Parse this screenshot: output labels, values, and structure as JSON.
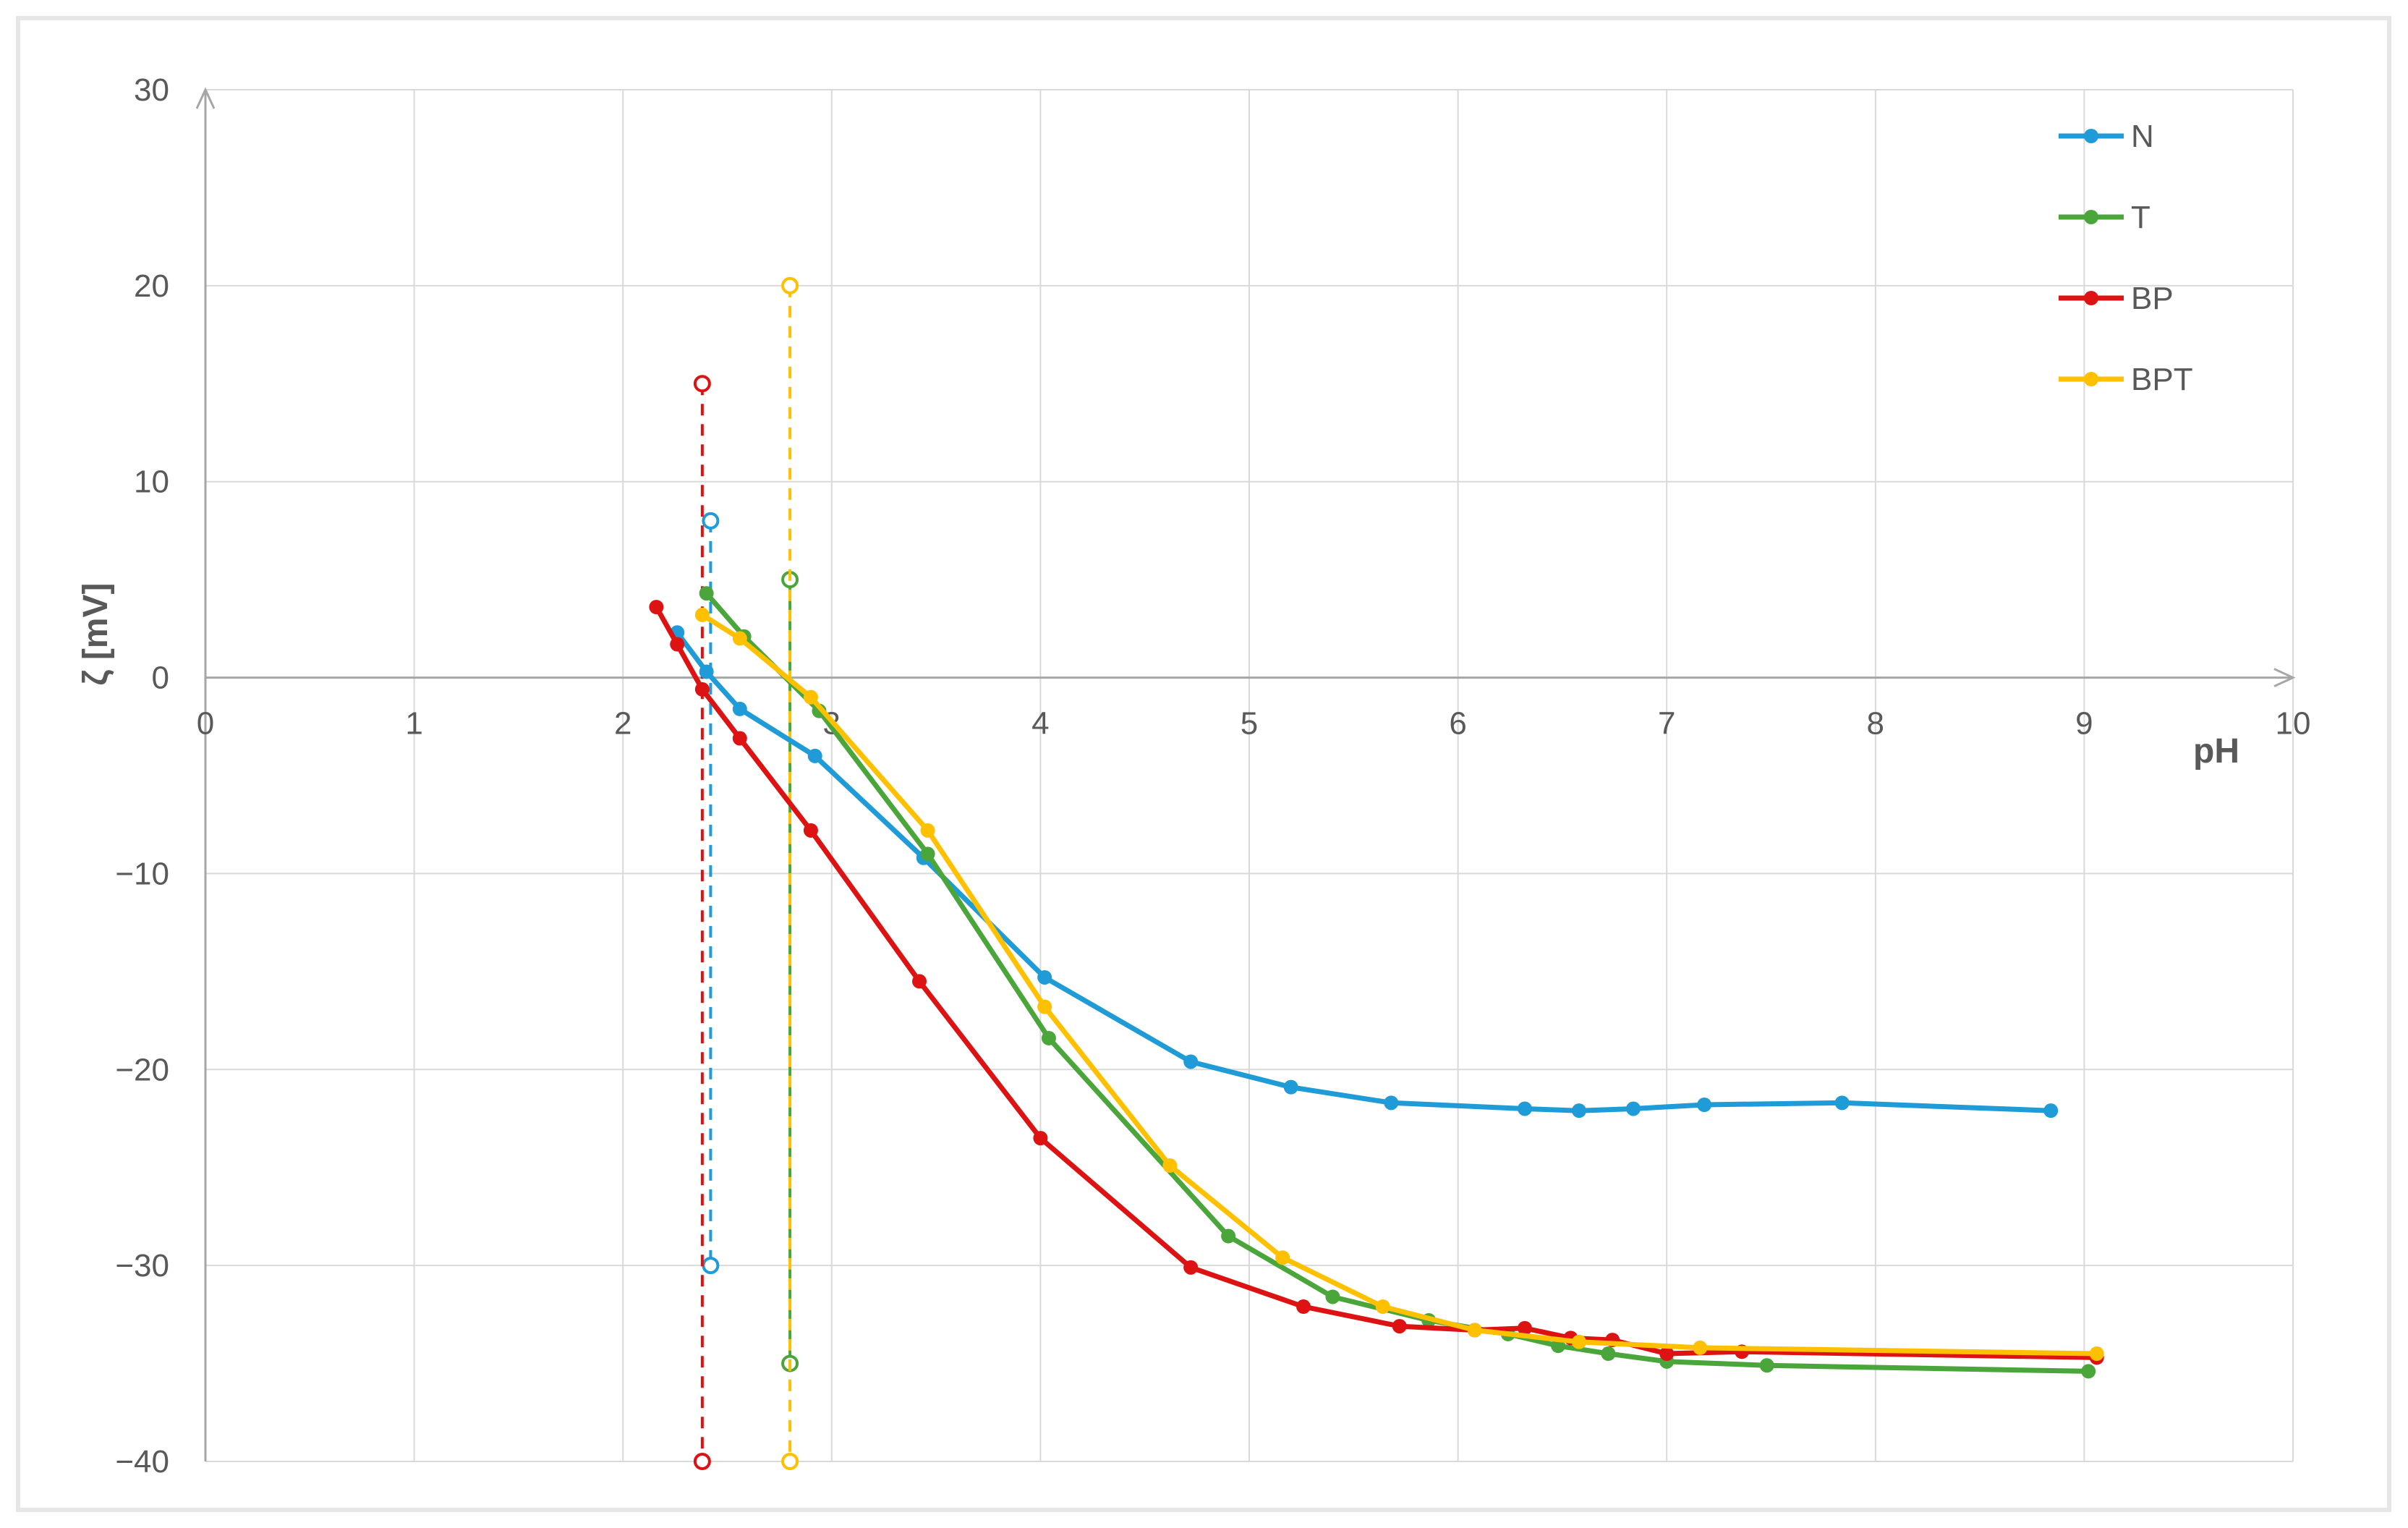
{
  "chart_data": {
    "type": "line",
    "title": "",
    "xlabel": "pH",
    "ylabel": "ζ [mV]",
    "xlim": [
      0,
      10
    ],
    "ylim": [
      -40,
      30
    ],
    "xticks": [
      "0",
      "1",
      "2",
      "3",
      "4",
      "5",
      "6",
      "7",
      "8",
      "9",
      "10"
    ],
    "yticks": [
      "−40",
      "−30",
      "−20",
      "−10",
      "0",
      "10",
      "20",
      "30"
    ],
    "grid": true,
    "legend_position": "top-right",
    "series": [
      {
        "name": "N",
        "color": "#1f9bd7",
        "points": [
          [
            2.26,
            2.3
          ],
          [
            2.4,
            0.3
          ],
          [
            2.56,
            -1.6
          ],
          [
            2.92,
            -4.0
          ],
          [
            3.44,
            -9.2
          ],
          [
            4.02,
            -15.3
          ],
          [
            4.72,
            -19.6
          ],
          [
            5.2,
            -20.9
          ],
          [
            5.68,
            -21.7
          ],
          [
            6.32,
            -22.0
          ],
          [
            6.58,
            -22.1
          ],
          [
            6.84,
            -22.0
          ],
          [
            7.18,
            -21.8
          ],
          [
            7.84,
            -21.7
          ],
          [
            8.84,
            -22.1
          ]
        ],
        "marker": [
          [
            2.42,
            8
          ],
          [
            2.42,
            -30
          ]
        ]
      },
      {
        "name": "T",
        "color": "#4aa63a",
        "points": [
          [
            2.4,
            4.3
          ],
          [
            2.58,
            2.1
          ],
          [
            2.94,
            -1.7
          ],
          [
            3.46,
            -9.0
          ],
          [
            4.04,
            -18.4
          ],
          [
            4.9,
            -28.5
          ],
          [
            5.4,
            -31.6
          ],
          [
            5.86,
            -32.8
          ],
          [
            6.24,
            -33.5
          ],
          [
            6.48,
            -34.1
          ],
          [
            6.72,
            -34.5
          ],
          [
            7.0,
            -34.9
          ],
          [
            7.48,
            -35.1
          ],
          [
            9.02,
            -35.4
          ]
        ],
        "marker": [
          [
            2.8,
            5
          ],
          [
            2.8,
            -35
          ]
        ]
      },
      {
        "name": "BP",
        "color": "#dd1212",
        "points": [
          [
            2.16,
            3.6
          ],
          [
            2.26,
            1.7
          ],
          [
            2.38,
            -0.6
          ],
          [
            2.56,
            -3.1
          ],
          [
            2.9,
            -7.8
          ],
          [
            3.42,
            -15.5
          ],
          [
            4.0,
            -23.5
          ],
          [
            4.72,
            -30.1
          ],
          [
            5.26,
            -32.1
          ],
          [
            5.72,
            -33.1
          ],
          [
            6.08,
            -33.3
          ],
          [
            6.32,
            -33.2
          ],
          [
            6.54,
            -33.7
          ],
          [
            6.74,
            -33.8
          ],
          [
            7.0,
            -34.5
          ],
          [
            7.36,
            -34.4
          ],
          [
            9.06,
            -34.7
          ]
        ],
        "marker": [
          [
            2.38,
            15
          ],
          [
            2.38,
            -40
          ]
        ]
      },
      {
        "name": "BPT",
        "color": "#ffc000",
        "points": [
          [
            2.38,
            3.2
          ],
          [
            2.56,
            2.0
          ],
          [
            2.9,
            -1.0
          ],
          [
            3.46,
            -7.8
          ],
          [
            4.02,
            -16.8
          ],
          [
            4.62,
            -24.9
          ],
          [
            5.16,
            -29.6
          ],
          [
            5.64,
            -32.1
          ],
          [
            6.08,
            -33.3
          ],
          [
            6.58,
            -33.9
          ],
          [
            7.16,
            -34.2
          ],
          [
            9.06,
            -34.5
          ]
        ],
        "marker": [
          [
            2.8,
            20
          ],
          [
            2.8,
            -40
          ]
        ]
      }
    ]
  }
}
